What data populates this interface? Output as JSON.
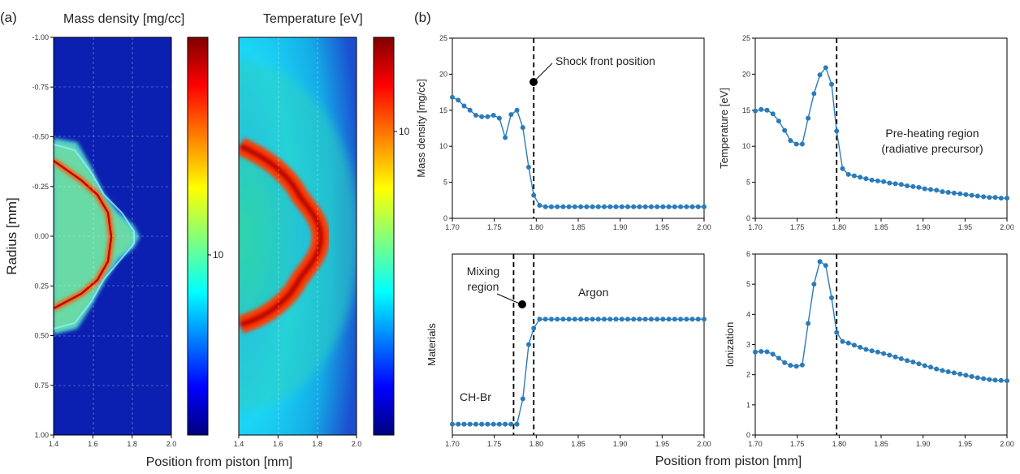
{
  "panel_labels": {
    "a": "(a)",
    "b": "(b)"
  },
  "panel_a": {
    "density_title": "Mass density [mg/cc]",
    "temperature_title": "Temperature [eV]",
    "ylabel": "Radius [mm]",
    "xlabel": "Position from piston [mm]",
    "density_colorbar_label": "10",
    "temperature_colorbar_label": "10",
    "map_xticks": [
      "1.4",
      "1.6",
      "1.8",
      "2.0"
    ],
    "map_yticks": [
      "-1.00",
      "-0.75",
      "-0.50",
      "-0.25",
      "0.00",
      "0.25",
      "0.50",
      "0.75",
      "1.00"
    ]
  },
  "panel_b": {
    "xlabel": "Position from piston [mm]",
    "annotations": {
      "shock": "Shock front position",
      "preheat_1": "Pre-heating region",
      "preheat_2": "(radiative precursor)",
      "mixing_1": "Mixing",
      "mixing_2": "region",
      "argon": "Argon",
      "chbr": "CH-Br"
    }
  },
  "chart_data": [
    {
      "id": "density",
      "type": "line",
      "title": "",
      "xlabel": "",
      "ylabel": "Mass density [mg/cc]",
      "xlim": [
        1.7,
        2.0
      ],
      "ylim": [
        0,
        25
      ],
      "xticks": [
        "1.70",
        "1.75",
        "1.80",
        "1.85",
        "1.90",
        "1.95",
        "2.00"
      ],
      "yticks": [
        "0",
        "5",
        "10",
        "15",
        "20",
        "25"
      ],
      "vline": 1.797,
      "x": [
        1.7,
        1.707,
        1.714,
        1.721,
        1.728,
        1.735,
        1.742,
        1.749,
        1.756,
        1.763,
        1.77,
        1.777,
        1.784,
        1.791,
        1.797,
        1.804,
        1.811,
        1.818,
        1.825,
        1.832,
        1.839,
        1.846,
        1.853,
        1.86,
        1.867,
        1.874,
        1.881,
        1.888,
        1.895,
        1.902,
        1.909,
        1.916,
        1.923,
        1.93,
        1.937,
        1.944,
        1.951,
        1.958,
        1.965,
        1.972,
        1.979,
        1.986,
        1.993,
        2.0
      ],
      "y": [
        16.8,
        16.4,
        15.6,
        15.0,
        14.3,
        14.1,
        14.1,
        14.3,
        13.9,
        11.2,
        14.4,
        15.0,
        12.6,
        7.1,
        3.2,
        1.8,
        1.6,
        1.6,
        1.6,
        1.6,
        1.6,
        1.6,
        1.6,
        1.6,
        1.6,
        1.6,
        1.6,
        1.6,
        1.6,
        1.6,
        1.6,
        1.6,
        1.6,
        1.6,
        1.6,
        1.6,
        1.6,
        1.6,
        1.6,
        1.6,
        1.6,
        1.6,
        1.6,
        1.6
      ]
    },
    {
      "id": "temperature",
      "type": "line",
      "title": "",
      "xlabel": "",
      "ylabel": "Temperature [eV]",
      "xlim": [
        1.7,
        2.0
      ],
      "ylim": [
        0,
        25
      ],
      "xticks": [
        "1.70",
        "1.75",
        "1.80",
        "1.85",
        "1.90",
        "1.95",
        "2.00"
      ],
      "yticks": [
        "0",
        "5",
        "10",
        "15",
        "20",
        "25"
      ],
      "vline": 1.797,
      "x": [
        1.7,
        1.707,
        1.714,
        1.721,
        1.728,
        1.735,
        1.742,
        1.749,
        1.756,
        1.763,
        1.77,
        1.777,
        1.784,
        1.791,
        1.797,
        1.804,
        1.811,
        1.818,
        1.825,
        1.832,
        1.839,
        1.846,
        1.853,
        1.86,
        1.867,
        1.874,
        1.881,
        1.888,
        1.895,
        1.902,
        1.909,
        1.916,
        1.923,
        1.93,
        1.937,
        1.944,
        1.951,
        1.958,
        1.965,
        1.972,
        1.979,
        1.986,
        1.993,
        2.0
      ],
      "y": [
        14.9,
        15.1,
        15.0,
        14.5,
        13.5,
        12.2,
        10.8,
        10.3,
        10.3,
        13.9,
        17.3,
        19.9,
        20.9,
        18.6,
        12.1,
        6.9,
        6.1,
        5.9,
        5.7,
        5.5,
        5.3,
        5.2,
        5.1,
        4.9,
        4.8,
        4.7,
        4.5,
        4.4,
        4.3,
        4.1,
        4.0,
        3.9,
        3.7,
        3.6,
        3.5,
        3.4,
        3.3,
        3.2,
        3.1,
        3.0,
        2.9,
        2.9,
        2.8,
        2.8
      ]
    },
    {
      "id": "materials",
      "type": "line",
      "title": "",
      "xlabel": "",
      "ylabel": "Materials",
      "xlim": [
        1.7,
        2.0
      ],
      "ylim": [
        0,
        1
      ],
      "xticks": [
        "1.70",
        "1.75",
        "1.80",
        "1.85",
        "1.90",
        "1.95",
        "2.00"
      ],
      "yticks": [],
      "vlines": [
        1.773,
        1.797
      ],
      "x": [
        1.7,
        1.707,
        1.714,
        1.721,
        1.728,
        1.735,
        1.742,
        1.749,
        1.756,
        1.763,
        1.77,
        1.777,
        1.784,
        1.791,
        1.797,
        1.804,
        1.811,
        1.818,
        1.825,
        1.832,
        1.839,
        1.846,
        1.853,
        1.86,
        1.867,
        1.874,
        1.881,
        1.888,
        1.895,
        1.902,
        1.909,
        1.916,
        1.923,
        1.93,
        1.937,
        1.944,
        1.951,
        1.958,
        1.965,
        1.972,
        1.979,
        1.986,
        1.993,
        2.0
      ],
      "y": [
        0.06,
        0.06,
        0.06,
        0.06,
        0.06,
        0.06,
        0.06,
        0.06,
        0.06,
        0.06,
        0.06,
        0.06,
        0.2,
        0.5,
        0.59,
        0.64,
        0.64,
        0.64,
        0.64,
        0.64,
        0.64,
        0.64,
        0.64,
        0.64,
        0.64,
        0.64,
        0.64,
        0.64,
        0.64,
        0.64,
        0.64,
        0.64,
        0.64,
        0.64,
        0.64,
        0.64,
        0.64,
        0.64,
        0.64,
        0.64,
        0.64,
        0.64,
        0.64,
        0.64
      ]
    },
    {
      "id": "ionization",
      "type": "line",
      "title": "",
      "xlabel": "",
      "ylabel": "Ionization",
      "xlim": [
        1.7,
        2.0
      ],
      "ylim": [
        0,
        6
      ],
      "xticks": [
        "1.70",
        "1.75",
        "1.80",
        "1.85",
        "1.90",
        "1.95",
        "2.00"
      ],
      "yticks": [
        "0",
        "1",
        "2",
        "3",
        "4",
        "5",
        "6"
      ],
      "vline": 1.797,
      "x": [
        1.7,
        1.707,
        1.714,
        1.721,
        1.728,
        1.735,
        1.742,
        1.749,
        1.756,
        1.763,
        1.77,
        1.777,
        1.784,
        1.791,
        1.797,
        1.804,
        1.811,
        1.818,
        1.825,
        1.832,
        1.839,
        1.846,
        1.853,
        1.86,
        1.867,
        1.874,
        1.881,
        1.888,
        1.895,
        1.902,
        1.909,
        1.916,
        1.923,
        1.93,
        1.937,
        1.944,
        1.951,
        1.958,
        1.965,
        1.972,
        1.979,
        1.986,
        1.993,
        2.0
      ],
      "y": [
        2.75,
        2.77,
        2.76,
        2.68,
        2.55,
        2.4,
        2.31,
        2.28,
        2.32,
        3.7,
        5.0,
        5.75,
        5.62,
        4.55,
        3.4,
        3.1,
        3.05,
        2.98,
        2.91,
        2.84,
        2.79,
        2.75,
        2.7,
        2.65,
        2.59,
        2.53,
        2.47,
        2.42,
        2.36,
        2.3,
        2.25,
        2.19,
        2.14,
        2.1,
        2.06,
        2.02,
        1.98,
        1.94,
        1.9,
        1.87,
        1.84,
        1.82,
        1.81,
        1.8
      ]
    }
  ]
}
